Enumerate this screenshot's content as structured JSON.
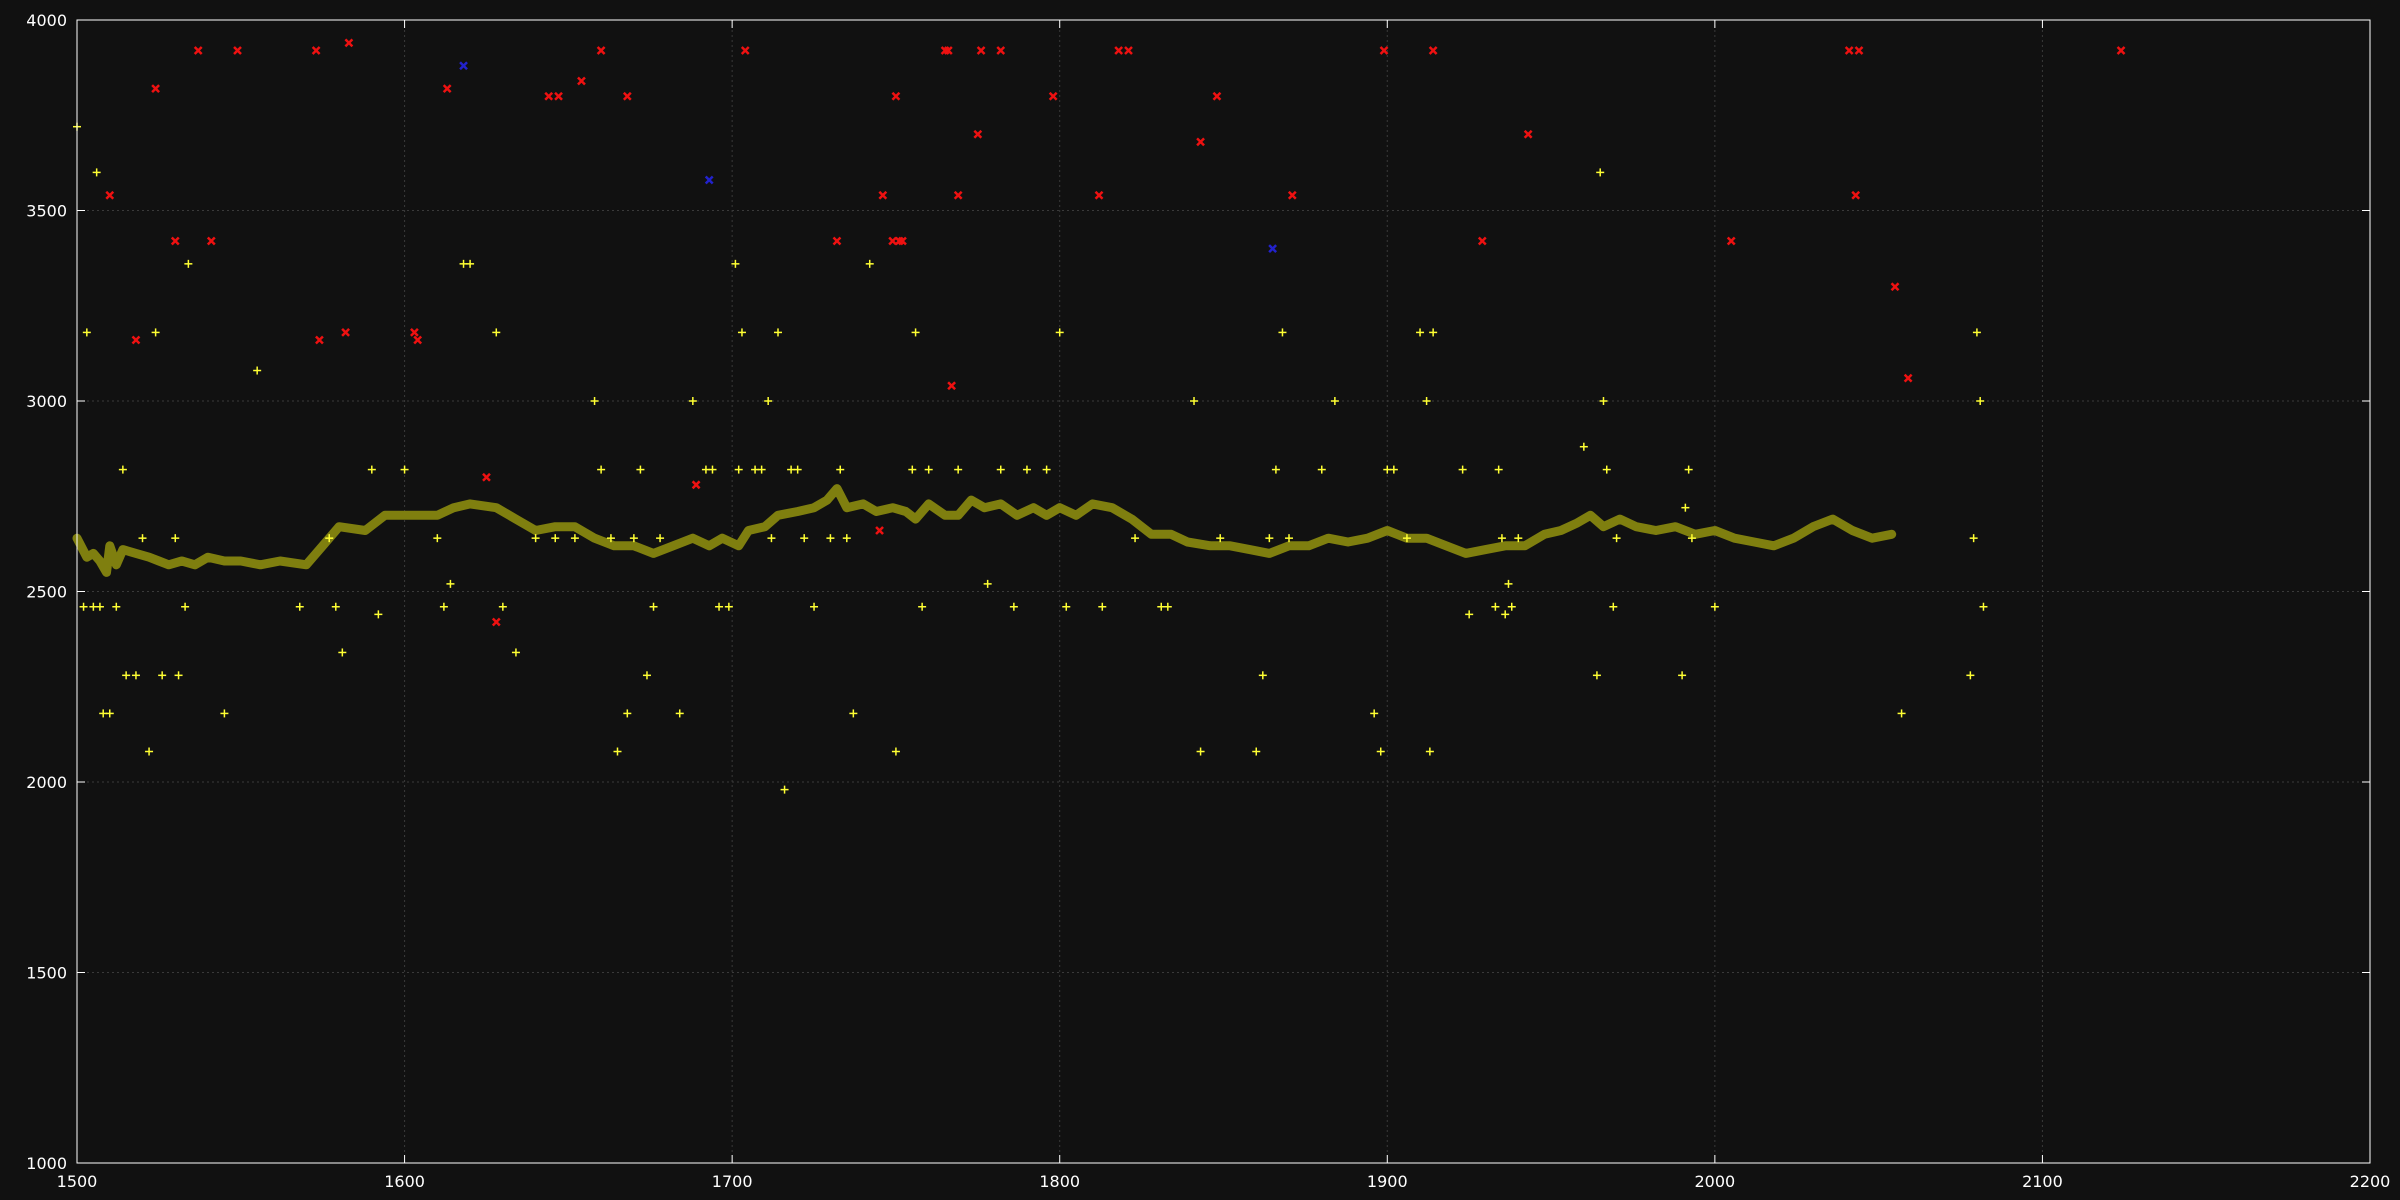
{
  "chart_data": {
    "type": "scatter",
    "title": "",
    "xlabel": "",
    "ylabel": "",
    "xlim": [
      1500,
      2200
    ],
    "ylim": [
      1000,
      4000
    ],
    "x_ticks": [
      1500,
      1600,
      1700,
      1800,
      1900,
      2000,
      2100,
      2200
    ],
    "y_ticks": [
      1000,
      1500,
      2000,
      2500,
      3000,
      3500,
      4000
    ],
    "grid": true,
    "legend": "none",
    "colors": {
      "background": "#111111",
      "plot_background": "#111111",
      "axis": "#ffffff",
      "grid": "#3a3a3a",
      "line": "#7f7f0f",
      "plus_points": "#ffff33",
      "x_points_red": "#ee1111",
      "x_points_blue": "#2222cc"
    },
    "series": [
      {
        "kind": "line",
        "style": "thick-line",
        "color": "#7f7f0f",
        "points": [
          [
            1500,
            2640
          ],
          [
            1503,
            2590
          ],
          [
            1505,
            2600
          ],
          [
            1507,
            2580
          ],
          [
            1509,
            2550
          ],
          [
            1510,
            2620
          ],
          [
            1512,
            2570
          ],
          [
            1514,
            2610
          ],
          [
            1518,
            2600
          ],
          [
            1522,
            2590
          ],
          [
            1525,
            2580
          ],
          [
            1528,
            2570
          ],
          [
            1532,
            2580
          ],
          [
            1536,
            2570
          ],
          [
            1540,
            2590
          ],
          [
            1545,
            2580
          ],
          [
            1550,
            2580
          ],
          [
            1556,
            2570
          ],
          [
            1562,
            2580
          ],
          [
            1570,
            2570
          ],
          [
            1575,
            2620
          ],
          [
            1580,
            2670
          ],
          [
            1588,
            2660
          ],
          [
            1594,
            2700
          ],
          [
            1600,
            2700
          ],
          [
            1610,
            2700
          ],
          [
            1615,
            2720
          ],
          [
            1620,
            2730
          ],
          [
            1628,
            2720
          ],
          [
            1634,
            2690
          ],
          [
            1640,
            2660
          ],
          [
            1646,
            2670
          ],
          [
            1652,
            2670
          ],
          [
            1658,
            2640
          ],
          [
            1664,
            2620
          ],
          [
            1670,
            2620
          ],
          [
            1676,
            2600
          ],
          [
            1682,
            2620
          ],
          [
            1688,
            2640
          ],
          [
            1693,
            2620
          ],
          [
            1697,
            2640
          ],
          [
            1702,
            2620
          ],
          [
            1705,
            2660
          ],
          [
            1710,
            2670
          ],
          [
            1714,
            2700
          ],
          [
            1720,
            2710
          ],
          [
            1725,
            2720
          ],
          [
            1729,
            2740
          ],
          [
            1732,
            2770
          ],
          [
            1735,
            2720
          ],
          [
            1740,
            2730
          ],
          [
            1744,
            2710
          ],
          [
            1749,
            2720
          ],
          [
            1753,
            2710
          ],
          [
            1756,
            2690
          ],
          [
            1760,
            2730
          ],
          [
            1765,
            2700
          ],
          [
            1769,
            2700
          ],
          [
            1773,
            2740
          ],
          [
            1777,
            2720
          ],
          [
            1782,
            2730
          ],
          [
            1787,
            2700
          ],
          [
            1792,
            2720
          ],
          [
            1796,
            2700
          ],
          [
            1800,
            2720
          ],
          [
            1805,
            2700
          ],
          [
            1810,
            2730
          ],
          [
            1816,
            2720
          ],
          [
            1822,
            2690
          ],
          [
            1828,
            2650
          ],
          [
            1834,
            2650
          ],
          [
            1839,
            2630
          ],
          [
            1846,
            2620
          ],
          [
            1852,
            2620
          ],
          [
            1858,
            2610
          ],
          [
            1864,
            2600
          ],
          [
            1870,
            2620
          ],
          [
            1876,
            2620
          ],
          [
            1882,
            2640
          ],
          [
            1888,
            2630
          ],
          [
            1894,
            2640
          ],
          [
            1900,
            2660
          ],
          [
            1906,
            2640
          ],
          [
            1912,
            2640
          ],
          [
            1918,
            2620
          ],
          [
            1924,
            2600
          ],
          [
            1930,
            2610
          ],
          [
            1936,
            2620
          ],
          [
            1942,
            2620
          ],
          [
            1948,
            2650
          ],
          [
            1953,
            2660
          ],
          [
            1958,
            2680
          ],
          [
            1962,
            2700
          ],
          [
            1966,
            2670
          ],
          [
            1971,
            2690
          ],
          [
            1976,
            2670
          ],
          [
            1982,
            2660
          ],
          [
            1988,
            2670
          ],
          [
            1994,
            2650
          ],
          [
            2000,
            2660
          ],
          [
            2006,
            2640
          ],
          [
            2012,
            2630
          ],
          [
            2018,
            2620
          ],
          [
            2024,
            2640
          ],
          [
            2030,
            2670
          ],
          [
            2036,
            2690
          ],
          [
            2042,
            2660
          ],
          [
            2048,
            2640
          ],
          [
            2054,
            2650
          ]
        ]
      },
      {
        "kind": "points",
        "marker": "plus",
        "color": "#ffff33",
        "points": [
          [
            1500,
            3720
          ],
          [
            1503,
            3180
          ],
          [
            1502,
            2460
          ],
          [
            1505,
            2460
          ],
          [
            1507,
            2460
          ],
          [
            1506,
            3600
          ],
          [
            1508,
            2180
          ],
          [
            1510,
            2180
          ],
          [
            1512,
            2460
          ],
          [
            1514,
            2820
          ],
          [
            1515,
            2280
          ],
          [
            1518,
            2280
          ],
          [
            1520,
            2640
          ],
          [
            1522,
            2080
          ],
          [
            1524,
            3180
          ],
          [
            1526,
            2280
          ],
          [
            1530,
            2640
          ],
          [
            1531,
            2280
          ],
          [
            1533,
            2460
          ],
          [
            1534,
            3360
          ],
          [
            1545,
            2180
          ],
          [
            1555,
            3080
          ],
          [
            1568,
            2460
          ],
          [
            1577,
            2640
          ],
          [
            1579,
            2460
          ],
          [
            1581,
            2340
          ],
          [
            1590,
            2820
          ],
          [
            1592,
            2440
          ],
          [
            1600,
            2820
          ],
          [
            1610,
            2640
          ],
          [
            1612,
            2460
          ],
          [
            1614,
            2520
          ],
          [
            1618,
            3360
          ],
          [
            1620,
            3360
          ],
          [
            1628,
            3180
          ],
          [
            1630,
            2460
          ],
          [
            1634,
            2340
          ],
          [
            1640,
            2640
          ],
          [
            1646,
            2640
          ],
          [
            1652,
            2640
          ],
          [
            1658,
            3000
          ],
          [
            1660,
            2820
          ],
          [
            1663,
            2640
          ],
          [
            1665,
            2080
          ],
          [
            1668,
            2180
          ],
          [
            1670,
            2640
          ],
          [
            1672,
            2820
          ],
          [
            1674,
            2280
          ],
          [
            1676,
            2460
          ],
          [
            1678,
            2640
          ],
          [
            1684,
            2180
          ],
          [
            1688,
            3000
          ],
          [
            1692,
            2820
          ],
          [
            1694,
            2820
          ],
          [
            1696,
            2460
          ],
          [
            1699,
            2460
          ],
          [
            1701,
            3360
          ],
          [
            1702,
            2820
          ],
          [
            1703,
            3180
          ],
          [
            1707,
            2820
          ],
          [
            1709,
            2820
          ],
          [
            1711,
            3000
          ],
          [
            1712,
            2640
          ],
          [
            1714,
            3180
          ],
          [
            1716,
            1980
          ],
          [
            1718,
            2820
          ],
          [
            1720,
            2820
          ],
          [
            1722,
            2640
          ],
          [
            1725,
            2460
          ],
          [
            1730,
            2640
          ],
          [
            1733,
            2820
          ],
          [
            1735,
            2640
          ],
          [
            1737,
            2180
          ],
          [
            1742,
            3360
          ],
          [
            1750,
            2080
          ],
          [
            1755,
            2820
          ],
          [
            1756,
            3180
          ],
          [
            1758,
            2460
          ],
          [
            1760,
            2820
          ],
          [
            1769,
            2820
          ],
          [
            1778,
            2520
          ],
          [
            1782,
            2820
          ],
          [
            1786,
            2460
          ],
          [
            1790,
            2820
          ],
          [
            1796,
            2820
          ],
          [
            1800,
            3180
          ],
          [
            1802,
            2460
          ],
          [
            1813,
            2460
          ],
          [
            1823,
            2640
          ],
          [
            1831,
            2460
          ],
          [
            1833,
            2460
          ],
          [
            1841,
            3000
          ],
          [
            1843,
            2080
          ],
          [
            1849,
            2640
          ],
          [
            1860,
            2080
          ],
          [
            1862,
            2280
          ],
          [
            1864,
            2640
          ],
          [
            1866,
            2820
          ],
          [
            1868,
            3180
          ],
          [
            1870,
            2640
          ],
          [
            1880,
            2820
          ],
          [
            1884,
            3000
          ],
          [
            1896,
            2180
          ],
          [
            1898,
            2080
          ],
          [
            1900,
            2820
          ],
          [
            1902,
            2820
          ],
          [
            1906,
            2640
          ],
          [
            1910,
            3180
          ],
          [
            1912,
            3000
          ],
          [
            1913,
            2080
          ],
          [
            1914,
            3180
          ],
          [
            1923,
            2820
          ],
          [
            1925,
            2440
          ],
          [
            1933,
            2460
          ],
          [
            1934,
            2820
          ],
          [
            1935,
            2640
          ],
          [
            1936,
            2440
          ],
          [
            1937,
            2520
          ],
          [
            1938,
            2460
          ],
          [
            1940,
            2640
          ],
          [
            1960,
            2880
          ],
          [
            1964,
            2280
          ],
          [
            1965,
            3600
          ],
          [
            1966,
            3000
          ],
          [
            1967,
            2820
          ],
          [
            1969,
            2460
          ],
          [
            1970,
            2640
          ],
          [
            1990,
            2280
          ],
          [
            1991,
            2720
          ],
          [
            1992,
            2820
          ],
          [
            1993,
            2640
          ],
          [
            2000,
            2460
          ],
          [
            2057,
            2180
          ],
          [
            2078,
            2280
          ],
          [
            2079,
            2640
          ],
          [
            2080,
            3180
          ],
          [
            2081,
            3000
          ],
          [
            2082,
            2460
          ]
        ]
      },
      {
        "kind": "points",
        "marker": "x",
        "color": "#ee1111",
        "points": [
          [
            1510,
            3540
          ],
          [
            1518,
            3160
          ],
          [
            1524,
            3820
          ],
          [
            1530,
            3420
          ],
          [
            1537,
            3920
          ],
          [
            1541,
            3420
          ],
          [
            1549,
            3920
          ],
          [
            1573,
            3920
          ],
          [
            1574,
            3160
          ],
          [
            1582,
            3180
          ],
          [
            1583,
            3940
          ],
          [
            1603,
            3180
          ],
          [
            1604,
            3160
          ],
          [
            1613,
            3820
          ],
          [
            1625,
            2800
          ],
          [
            1628,
            2420
          ],
          [
            1644,
            3800
          ],
          [
            1647,
            3800
          ],
          [
            1654,
            3840
          ],
          [
            1660,
            3920
          ],
          [
            1668,
            3800
          ],
          [
            1689,
            2780
          ],
          [
            1704,
            3920
          ],
          [
            1732,
            3420
          ],
          [
            1745,
            2660
          ],
          [
            1746,
            3540
          ],
          [
            1749,
            3420
          ],
          [
            1750,
            3800
          ],
          [
            1751,
            3420
          ],
          [
            1752,
            3420
          ],
          [
            1765,
            3920
          ],
          [
            1766,
            3920
          ],
          [
            1767,
            3040
          ],
          [
            1769,
            3540
          ],
          [
            1775,
            3700
          ],
          [
            1776,
            3920
          ],
          [
            1782,
            3920
          ],
          [
            1798,
            3800
          ],
          [
            1812,
            3540
          ],
          [
            1818,
            3920
          ],
          [
            1821,
            3920
          ],
          [
            1843,
            3680
          ],
          [
            1848,
            3800
          ],
          [
            1871,
            3540
          ],
          [
            1899,
            3920
          ],
          [
            1914,
            3920
          ],
          [
            1929,
            3420
          ],
          [
            1943,
            3700
          ],
          [
            2005,
            3420
          ],
          [
            2041,
            3920
          ],
          [
            2043,
            3540
          ],
          [
            2044,
            3920
          ],
          [
            2055,
            3300
          ],
          [
            2059,
            3060
          ],
          [
            2124,
            3920
          ]
        ]
      },
      {
        "kind": "points",
        "marker": "x",
        "color": "#2222cc",
        "points": [
          [
            1618,
            3880
          ],
          [
            1693,
            3580
          ],
          [
            1865,
            3400
          ]
        ]
      }
    ]
  }
}
